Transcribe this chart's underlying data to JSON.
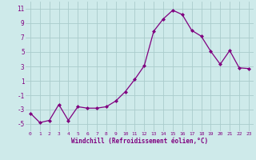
{
  "x": [
    0,
    1,
    2,
    3,
    4,
    5,
    6,
    7,
    8,
    9,
    10,
    11,
    12,
    13,
    14,
    15,
    16,
    17,
    18,
    19,
    20,
    21,
    22,
    23
  ],
  "y": [
    -3.5,
    -4.8,
    -4.5,
    -2.3,
    -4.5,
    -2.6,
    -2.8,
    -2.8,
    -2.6,
    -1.8,
    -0.5,
    1.2,
    3.1,
    7.9,
    9.6,
    10.8,
    10.2,
    8.0,
    7.2,
    5.1,
    3.3,
    5.2,
    2.8,
    2.7
  ],
  "line_color": "#800080",
  "marker": "D",
  "marker_size": 2,
  "bg_color": "#ceeaea",
  "grid_color": "#aacccc",
  "xlabel": "Windchill (Refroidissement éolien,°C)",
  "xlim": [
    -0.5,
    23.5
  ],
  "ylim": [
    -6,
    12
  ],
  "yticks": [
    -5,
    -3,
    -1,
    1,
    3,
    5,
    7,
    9,
    11
  ],
  "xticks": [
    0,
    1,
    2,
    3,
    4,
    5,
    6,
    7,
    8,
    9,
    10,
    11,
    12,
    13,
    14,
    15,
    16,
    17,
    18,
    19,
    20,
    21,
    22,
    23
  ]
}
